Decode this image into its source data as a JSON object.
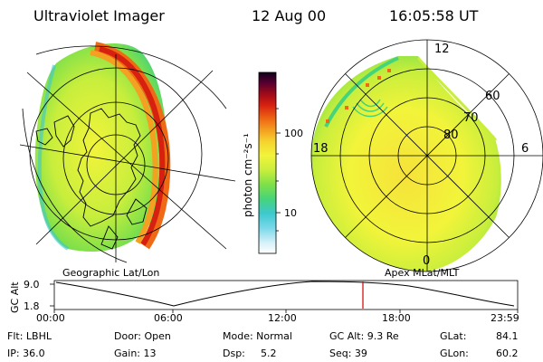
{
  "header": {
    "title": "Ultraviolet Imager",
    "date": "12 Aug 00",
    "time": "16:05:58 UT"
  },
  "colorbar": {
    "unit_label": "photon cm⁻²s⁻¹",
    "ticks": [
      "100",
      "10"
    ],
    "colors": [
      "#ffffff",
      "#d6f0f8",
      "#7ad8ea",
      "#3dc8cf",
      "#46d47a",
      "#7fe04a",
      "#c8ee3c",
      "#f2f43a",
      "#f6d22e",
      "#f4a020",
      "#ef6a14",
      "#d62010",
      "#a00a18",
      "#5a0030",
      "#10001a"
    ]
  },
  "left_panel": {
    "caption": "Geographic Lat/Lon"
  },
  "right_panel": {
    "caption": "Apex MLat/MLT",
    "mlt_labels": [
      "12",
      "18",
      "6",
      "0"
    ],
    "mlat_labels": [
      "60",
      "70",
      "80"
    ]
  },
  "altitude_plot": {
    "ylabel": "GC Alt",
    "yticks": [
      "9.0",
      "1.8"
    ],
    "xticks": [
      "00:00",
      "06:00",
      "12:00",
      "18:00",
      "23:59"
    ],
    "marker_color": "#d00000"
  },
  "info": {
    "row1": {
      "flt": "Flt: LBHL",
      "door": "Door: Open",
      "mode": "Mode: Normal",
      "gcalt": "GC Alt: 9.3 Re",
      "glat_label": "GLat:",
      "glat_value": "84.1"
    },
    "row2": {
      "ip": "IP: 36.0",
      "gain": "Gain: 13",
      "dsp_label": "Dsp:",
      "dsp_value": "5.2",
      "seq": "Seq: 39",
      "glon_label": "GLon:",
      "glon_value": "60.2"
    }
  }
}
